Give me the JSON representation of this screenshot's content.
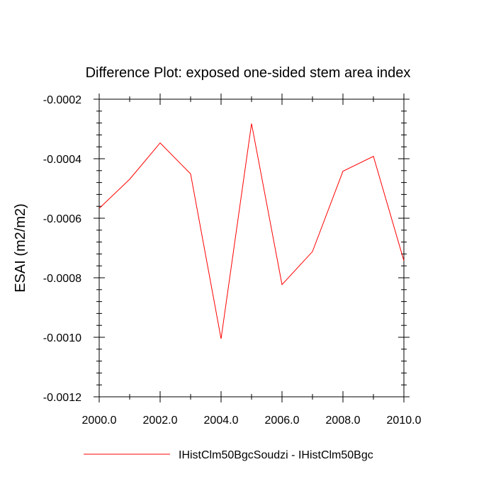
{
  "chart_data": {
    "type": "line",
    "title": "Difference Plot: exposed one-sided stem area index",
    "xlabel": "",
    "ylabel": "ESAI  (m2/m2)",
    "xlim": [
      2000,
      2010
    ],
    "ylim": [
      -0.0012,
      -0.0002
    ],
    "xticks": [
      "2000.0",
      "2002.0",
      "2004.0",
      "2006.0",
      "2008.0",
      "2010.0"
    ],
    "yticks": [
      "-0.0002",
      "-0.0004",
      "-0.0006",
      "-0.0008",
      "-0.0010",
      "-0.0012"
    ],
    "grid": false,
    "legend_position": "bottom",
    "series": [
      {
        "name": "IHistClm50BgcSoudzi - IHistClm50Bgc",
        "color": "#ff0000",
        "x": [
          2000,
          2001,
          2002,
          2003,
          2004,
          2005,
          2006,
          2007,
          2008,
          2009,
          2010
        ],
        "y": [
          -0.000567,
          -0.000469,
          -0.000347,
          -0.000451,
          -0.001005,
          -0.000282,
          -0.000823,
          -0.000712,
          -0.000442,
          -0.000392,
          -0.000743
        ]
      }
    ]
  }
}
